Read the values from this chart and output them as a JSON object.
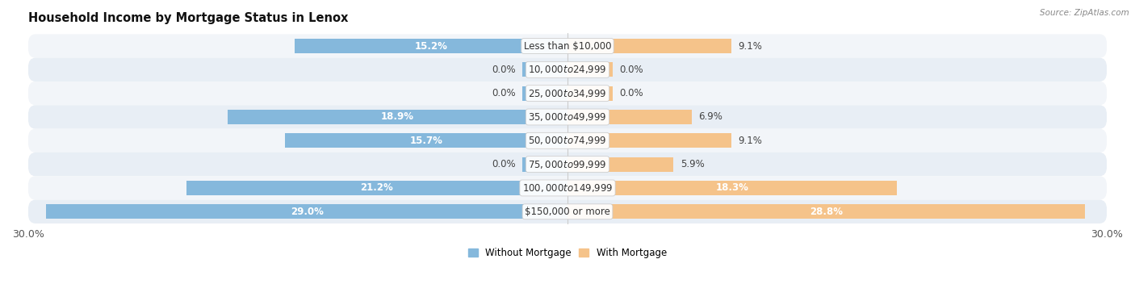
{
  "title": "Household Income by Mortgage Status in Lenox",
  "source": "Source: ZipAtlas.com",
  "categories": [
    "Less than $10,000",
    "$10,000 to $24,999",
    "$25,000 to $34,999",
    "$35,000 to $49,999",
    "$50,000 to $74,999",
    "$75,000 to $99,999",
    "$100,000 to $149,999",
    "$150,000 or more"
  ],
  "without_mortgage": [
    15.2,
    0.0,
    0.0,
    18.9,
    15.7,
    0.0,
    21.2,
    29.0
  ],
  "with_mortgage": [
    9.1,
    0.0,
    0.0,
    6.9,
    9.1,
    5.9,
    18.3,
    28.8
  ],
  "color_without": "#85B8DC",
  "color_with": "#F5C38A",
  "row_colors": [
    "#F2F5F9",
    "#E8EEF5"
  ],
  "bar_height": 0.62,
  "xlim": 30.0,
  "stub_val": 2.5,
  "legend_labels": [
    "Without Mortgage",
    "With Mortgage"
  ],
  "title_fontsize": 10.5,
  "label_fontsize": 8.5,
  "axis_fontsize": 9,
  "cat_fontsize": 8.5
}
